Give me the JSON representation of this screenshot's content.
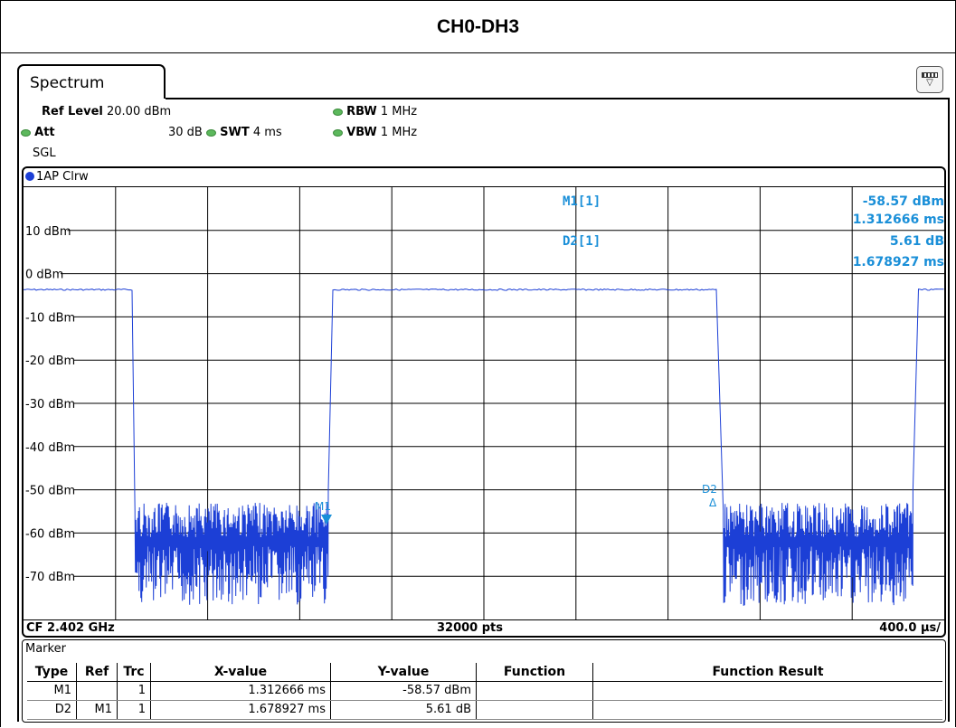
{
  "window": {
    "title": "CH0-DH3"
  },
  "tab": {
    "label": "Spectrum"
  },
  "settings": {
    "ref_level_label": "Ref Level",
    "ref_level_value": "20.00 dBm",
    "att_label": "Att",
    "att_value": "30 dB",
    "swt_label": "SWT",
    "swt_value": "4 ms",
    "rbw_label": "RBW",
    "rbw_value": "1 MHz",
    "vbw_label": "VBW",
    "vbw_value": "1 MHz",
    "mode": "SGL"
  },
  "trace": {
    "label": "1AP Clrw",
    "color": "#1c3fd6"
  },
  "markers_readout": {
    "m1_label": "M1[1]",
    "m1_level": "-58.57 dBm",
    "m1_time": "1.312666 ms",
    "d2_label": "D2[1]",
    "d2_level": "5.61 dB",
    "d2_time": "1.678927 ms",
    "color": "#1a8fd8"
  },
  "plot_markers": {
    "m1": "M1",
    "d2": "D2"
  },
  "bottom": {
    "cf": "CF 2.402 GHz",
    "points": "32000 pts",
    "span": "400.0 µs/"
  },
  "chart_data": {
    "type": "line",
    "y_tick_labels": [
      "10 dBm",
      "0 dBm",
      "-10 dBm",
      "-20 dBm",
      "-30 dBm",
      "-40 dBm",
      "-50 dBm",
      "-60 dBm",
      "-70 dBm"
    ],
    "ylim": [
      -80,
      20
    ],
    "xlim_ms": [
      0,
      4
    ],
    "grid": true,
    "series": [
      {
        "high_level_dbm": -3.7,
        "noise_floor_dbm": [
          -75,
          -55
        ],
        "segments": [
          {
            "start_ms": 0.0,
            "end_ms": 1.18,
            "state": "high"
          },
          {
            "start_ms": 1.21,
            "end_ms": 3.31,
            "state": "noise"
          },
          {
            "start_ms": 3.36,
            "end_ms": 7.53,
            "state": "high"
          },
          {
            "start_ms": 7.6,
            "end_ms": 9.66,
            "state": "noise"
          },
          {
            "start_ms": 9.72,
            "end_ms": 10.0,
            "state": "high"
          }
        ]
      }
    ]
  },
  "marker_table": {
    "title": "Marker",
    "headers": [
      "Type",
      "Ref",
      "Trc",
      "X-value",
      "Y-value",
      "Function",
      "Function Result"
    ],
    "rows": [
      [
        "M1",
        "",
        "1",
        "1.312666 ms",
        "-58.57 dBm",
        "",
        ""
      ],
      [
        "D2",
        "M1",
        "1",
        "1.678927 ms",
        "5.61 dB",
        "",
        ""
      ]
    ]
  }
}
